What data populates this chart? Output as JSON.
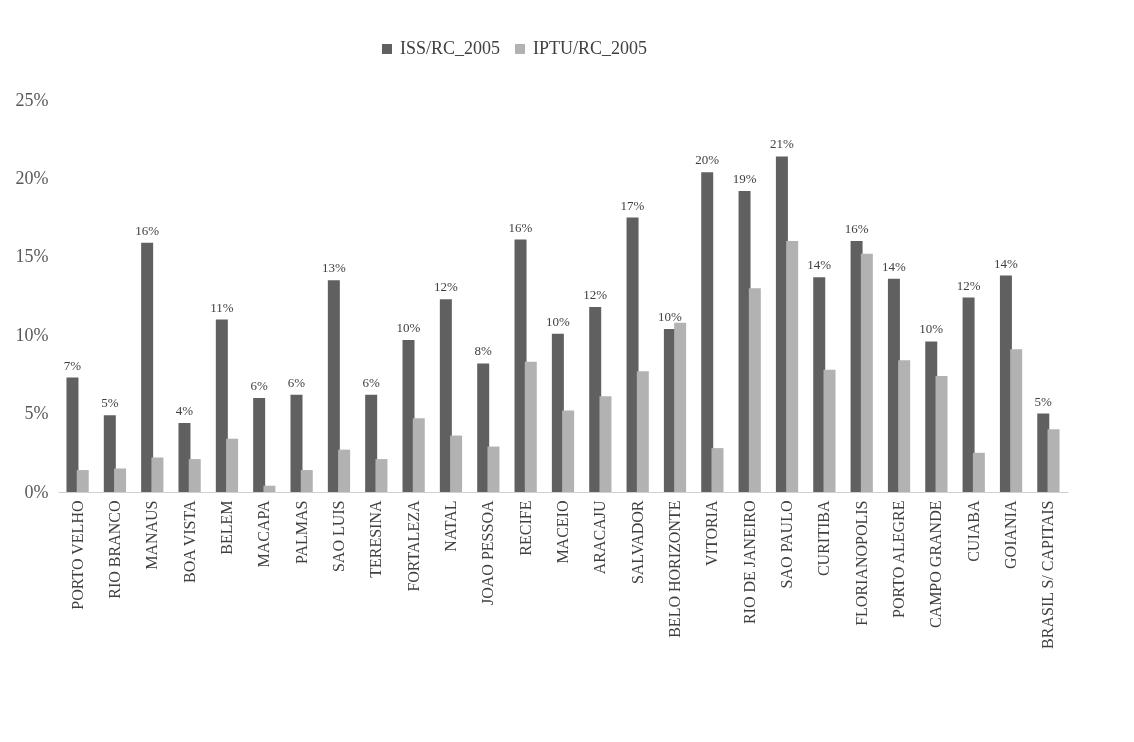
{
  "chart_data": {
    "type": "bar",
    "categories": [
      "PORTO VELHO",
      "RIO BRANCO",
      "MANAUS",
      "BOA VISTA",
      "BELEM",
      "MACAPA",
      "PALMAS",
      "SAO LUIS",
      "TERESINA",
      "FORTALEZA",
      "NATAL",
      "JOAO PESSOA",
      "RECIFE",
      "MACEIO",
      "ARACAJU",
      "SALVADOR",
      "BELO HORIZONTE",
      "VITORIA",
      "RIO DE JANEIRO",
      "SAO PAULO",
      "CURITIBA",
      "FLORIANOPOLIS",
      "PORTO ALEGRE",
      "CAMPO GRANDE",
      "CUIABA",
      "GOIANIA",
      "BRASIL S/ CAPITAIS"
    ],
    "series": [
      {
        "name": "ISS/RC_2005",
        "color": "#606060",
        "values": [
          7.3,
          4.9,
          15.9,
          4.4,
          11.0,
          6.0,
          6.2,
          13.5,
          6.2,
          9.7,
          12.3,
          8.2,
          16.1,
          10.1,
          11.8,
          17.5,
          10.4,
          20.4,
          19.2,
          21.4,
          13.7,
          16.0,
          13.6,
          9.6,
          12.4,
          13.8,
          5.0
        ],
        "value_labels": [
          "7%",
          "5%",
          "16%",
          "4%",
          "11%",
          "6%",
          "6%",
          "13%",
          "6%",
          "10%",
          "12%",
          "8%",
          "16%",
          "10%",
          "12%",
          "17%",
          "10%",
          "20%",
          "19%",
          "21%",
          "14%",
          "16%",
          "14%",
          "10%",
          "12%",
          "14%",
          "5%"
        ]
      },
      {
        "name": "IPTU/RC_2005",
        "color": "#b2b2b2",
        "values": [
          1.4,
          1.5,
          2.2,
          2.1,
          3.4,
          0.4,
          1.4,
          2.7,
          2.1,
          4.7,
          3.6,
          2.9,
          8.3,
          5.2,
          6.1,
          7.7,
          10.8,
          2.8,
          13.0,
          16.0,
          7.8,
          15.2,
          8.4,
          7.4,
          2.5,
          9.1,
          4.0
        ]
      }
    ],
    "ylim": [
      0,
      25
    ],
    "yticks": [
      {
        "value": 0,
        "label": "0%"
      },
      {
        "value": 5,
        "label": "5%"
      },
      {
        "value": 10,
        "label": "10%"
      },
      {
        "value": 15,
        "label": "15%"
      },
      {
        "value": 20,
        "label": "20%"
      },
      {
        "value": 25,
        "label": "25%"
      }
    ],
    "grid": false,
    "legend": "top"
  }
}
